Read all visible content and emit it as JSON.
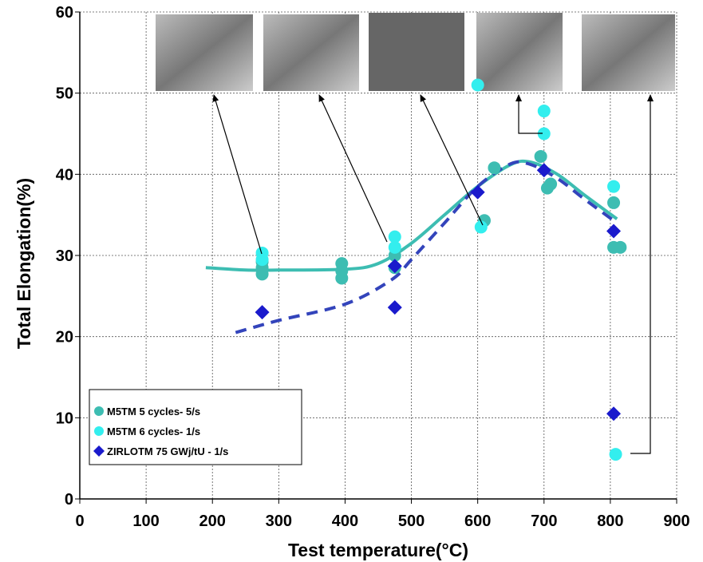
{
  "chart_data": {
    "type": "scatter",
    "xlabel": "Test temperature(°C)",
    "ylabel": "Total Elongation(%)",
    "xlim": [
      0,
      900
    ],
    "ylim": [
      0,
      60
    ],
    "xticks": [
      0,
      100,
      200,
      300,
      400,
      500,
      600,
      700,
      800,
      900
    ],
    "yticks": [
      0,
      10,
      20,
      30,
      40,
      50,
      60
    ],
    "grid": true,
    "legend": "lower left",
    "series": [
      {
        "name": "M5TM 5 cycles- 5/s",
        "color": "#3dbdb2",
        "marker": "circle",
        "x": [
          275,
          275,
          275,
          395,
          395,
          395,
          475,
          475,
          610,
          625,
          695,
          705,
          710,
          805,
          805,
          815
        ],
        "values": [
          27.7,
          28.5,
          29.2,
          27.2,
          28.1,
          29,
          28.5,
          30,
          34.3,
          40.8,
          42.2,
          38.3,
          38.8,
          36.5,
          31,
          31
        ]
      },
      {
        "name": "M5TM 6 cycles- 1/s",
        "color": "#33eeee",
        "marker": "circle",
        "x": [
          275,
          275,
          475,
          475,
          600,
          605,
          700,
          700,
          805,
          808
        ],
        "values": [
          30.3,
          29.5,
          32.3,
          31,
          51,
          33.5,
          47.8,
          45,
          38.5,
          5.5
        ]
      },
      {
        "name": "ZIRLOTM 75 GWj/tU - 1/s",
        "color": "#1a1acc",
        "marker": "diamond",
        "x": [
          275,
          475,
          475,
          600,
          700,
          805,
          805
        ],
        "values": [
          23,
          28.7,
          23.6,
          37.8,
          40.5,
          33,
          10.5
        ]
      }
    ],
    "trend_lines": [
      {
        "color": "#3dbdb2",
        "dashed": false,
        "x": [
          190,
          250,
          300,
          400,
          450,
          500,
          550,
          600,
          650,
          680,
          720,
          760,
          810
        ],
        "values": [
          28.5,
          28.2,
          28.2,
          28.3,
          29,
          31.5,
          35,
          38.5,
          41.2,
          41.5,
          40,
          37.5,
          34.5
        ]
      },
      {
        "color": "#3344bb",
        "dashed": true,
        "x": [
          235,
          300,
          400,
          470,
          500,
          550,
          600,
          650,
          680,
          720,
          760,
          810
        ],
        "values": [
          20.5,
          22,
          24,
          27,
          29.5,
          34,
          38.5,
          41.3,
          41.2,
          39.5,
          37,
          34
        ]
      }
    ]
  }
}
